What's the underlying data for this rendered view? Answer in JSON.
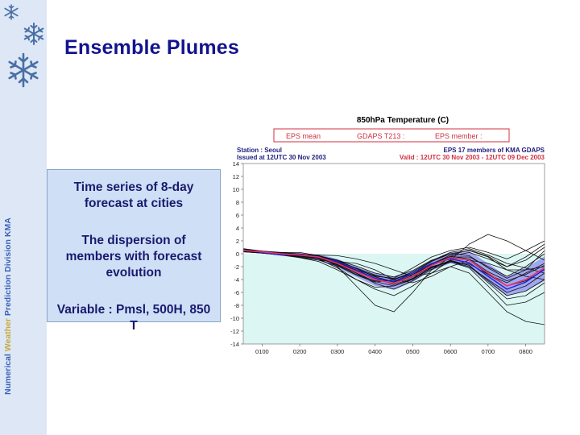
{
  "slide": {
    "title": "Ensemble Plumes",
    "sidebar_label_a": "Numerical ",
    "sidebar_label_b": "Weather",
    "sidebar_label_c": " Prediction Division  KMA",
    "bullets": [
      "Time series of 8-day forecast at cities",
      "The dispersion of members with forecast evolution",
      "Variable : Pmsl, 500H, 850 T"
    ],
    "decor_icons": [
      "snowflake-icon",
      "snowflake-icon",
      "snowflake-icon"
    ]
  },
  "chart_data": {
    "type": "line",
    "title": "850hPa Temperature (C)",
    "legend": [
      "EPS mean",
      "GDAPS T213 :",
      "EPS member :"
    ],
    "station_label": "Station : Seoul",
    "issued_label": "Issued at 12UTC 30 Nov 2003",
    "members_label": "EPS 17 members of KMA GDAPS",
    "valid_label": "Valid : 12UTC 30 Nov 2003 - 12UTC 09 Dec 2003",
    "x_ticks": [
      "0100",
      "0200",
      "0300",
      "0400",
      "0500",
      "0600",
      "0700",
      "0800"
    ],
    "y_ticks": [
      14,
      12,
      10,
      8,
      6,
      4,
      2,
      0,
      -2,
      -4,
      -6,
      -8,
      -10,
      -12,
      -14
    ],
    "ylim": [
      -14,
      14
    ],
    "xlim": [
      0,
      8
    ],
    "colors": {
      "eps_mean": "#e8306a",
      "gdaps": "#2222d0",
      "member": "#111111",
      "spread": "#8c8cf0",
      "above_zero_bg": "#ffffff",
      "below_zero_bg": "#dcf7f3",
      "legend_red": "#d03040"
    },
    "x": [
      0,
      0.5,
      1,
      1.5,
      2,
      2.5,
      3,
      3.5,
      4,
      4.5,
      5,
      5.5,
      6,
      6.5,
      7,
      7.5,
      8
    ],
    "series": [
      {
        "name": "EPS mean",
        "values": [
          0.5,
          0.3,
          0.0,
          -0.2,
          -0.5,
          -1.5,
          -2.8,
          -4.0,
          -4.6,
          -3.5,
          -1.8,
          -0.6,
          -1.0,
          -3.0,
          -5.0,
          -4.0,
          -2.2
        ]
      },
      {
        "name": "GDAPS T213 :",
        "values": [
          0.6,
          0.2,
          -0.2,
          -0.1,
          -0.6,
          -1.2,
          -2.5,
          -3.8,
          -4.3,
          -3.0,
          -1.5,
          -0.8,
          -1.4,
          -3.5,
          -5.5,
          -4.4,
          -2.4
        ]
      },
      {
        "name": "EPS member :",
        "values": [
          0.8,
          0.4,
          0.0,
          -0.6,
          -1.2,
          -2.5,
          -4.0,
          -5.5,
          -6.5,
          -5.0,
          -3.0,
          -2.0,
          -3.0,
          -6.0,
          -9.0,
          -10.5,
          -11.0
        ]
      },
      {
        "name": "EPS member :",
        "values": [
          0.3,
          0.1,
          -0.1,
          -0.1,
          -0.3,
          -1.0,
          -2.3,
          -3.5,
          -3.8,
          -2.2,
          -0.5,
          0.5,
          1.0,
          0.2,
          -0.8,
          0.5,
          2.0
        ]
      },
      {
        "name": "EPS member :",
        "values": [
          0.6,
          0.2,
          0.2,
          0.2,
          -0.3,
          -2.0,
          -5.0,
          -8.0,
          -9.0,
          -6.0,
          -2.5,
          -0.5,
          -0.5,
          -2.0,
          -3.5,
          -2.0,
          0.0
        ]
      },
      {
        "name": "EPS member :",
        "values": [
          0.4,
          0.1,
          -0.2,
          -0.6,
          -1.0,
          -1.2,
          -1.5,
          -2.5,
          -4.0,
          -4.5,
          -3.5,
          -2.0,
          -1.0,
          -1.5,
          -2.5,
          -2.5,
          -2.0
        ]
      },
      {
        "name": "EPS member :",
        "values": [
          0.5,
          0.2,
          -0.1,
          -0.3,
          -0.6,
          -1.8,
          -3.2,
          -4.2,
          -4.2,
          -3.2,
          -1.8,
          -0.7,
          -1.0,
          -3.2,
          -5.0,
          -4.2,
          -2.5
        ]
      },
      {
        "name": "EPS member :",
        "values": [
          0.7,
          0.4,
          0.1,
          0.0,
          -0.5,
          -1.4,
          -2.6,
          -3.8,
          -4.8,
          -3.8,
          -2.2,
          -1.0,
          -1.8,
          -4.5,
          -7.0,
          -6.5,
          -4.5
        ]
      },
      {
        "name": "EPS member :",
        "values": [
          0.4,
          0.2,
          0.0,
          -0.2,
          -0.2,
          -0.3,
          -0.8,
          -1.5,
          -2.5,
          -3.5,
          -3.0,
          -1.0,
          1.5,
          3.0,
          2.0,
          0.5,
          -1.0
        ]
      },
      {
        "name": "EPS member :",
        "values": [
          0.5,
          0.3,
          0.1,
          -0.1,
          -0.4,
          -1.2,
          -2.2,
          -3.3,
          -4.0,
          -3.0,
          -1.2,
          0.0,
          0.5,
          -0.5,
          -2.5,
          -3.5,
          -4.0
        ]
      },
      {
        "name": "EPS member :",
        "values": [
          0.6,
          0.3,
          -0.1,
          -0.4,
          -0.8,
          -2.2,
          -4.0,
          -5.2,
          -5.0,
          -4.0,
          -2.2,
          -1.2,
          -2.2,
          -5.0,
          -8.0,
          -7.5,
          -6.0
        ]
      },
      {
        "name": "EPS member :",
        "values": [
          0.5,
          0.2,
          0.0,
          -0.1,
          -0.3,
          -1.3,
          -2.6,
          -3.8,
          -4.4,
          -3.4,
          -1.7,
          -0.4,
          0.2,
          -0.8,
          -2.0,
          -1.0,
          1.0
        ]
      },
      {
        "name": "EPS member :",
        "values": [
          0.4,
          0.1,
          -0.1,
          -0.3,
          -0.7,
          -1.6,
          -3.0,
          -4.6,
          -5.5,
          -4.2,
          -2.4,
          -1.3,
          -1.6,
          -3.2,
          -4.5,
          -3.0,
          -1.5
        ]
      },
      {
        "name": "EPS member :",
        "values": [
          0.6,
          0.3,
          0.0,
          -0.2,
          -0.4,
          -1.0,
          -1.9,
          -3.0,
          -3.6,
          -2.6,
          -1.0,
          0.0,
          -0.3,
          -2.2,
          -3.8,
          -2.5,
          0.5
        ]
      },
      {
        "name": "EPS member :",
        "values": [
          0.5,
          0.3,
          0.1,
          -0.2,
          -0.6,
          -1.5,
          -2.8,
          -4.0,
          -4.6,
          -3.6,
          -2.0,
          -1.2,
          -2.0,
          -4.0,
          -6.0,
          -5.0,
          -3.0
        ]
      },
      {
        "name": "EPS member :",
        "values": [
          0.7,
          0.3,
          -0.1,
          -0.5,
          -1.0,
          -1.9,
          -3.3,
          -4.4,
          -4.0,
          -2.8,
          -1.1,
          0.2,
          0.8,
          -0.2,
          -1.5,
          -2.2,
          -3.0
        ]
      },
      {
        "name": "EPS member :",
        "values": [
          0.3,
          0.1,
          -0.2,
          -0.4,
          -0.8,
          -1.6,
          -2.5,
          -3.4,
          -3.9,
          -3.0,
          -1.5,
          -0.4,
          -0.8,
          -2.8,
          -4.2,
          -3.2,
          -1.8
        ]
      },
      {
        "name": "EPS member :",
        "values": [
          0.5,
          0.2,
          0.1,
          0.0,
          -0.4,
          -1.1,
          -2.3,
          -3.6,
          -4.3,
          -3.2,
          -1.6,
          -0.2,
          0.6,
          -0.4,
          -2.0,
          -0.5,
          1.5
        ]
      },
      {
        "name": "EPS member :",
        "values": [
          0.6,
          0.4,
          0.2,
          -0.1,
          -0.6,
          -1.7,
          -3.0,
          -4.3,
          -5.0,
          -3.9,
          -2.1,
          -1.1,
          -1.8,
          -4.2,
          -6.5,
          -5.8,
          -4.0
        ]
      }
    ],
    "spread": {
      "lower": [
        0.3,
        0.1,
        -0.3,
        -0.6,
        -1.0,
        -2.2,
        -3.6,
        -5.0,
        -5.6,
        -4.4,
        -2.6,
        -1.5,
        -2.2,
        -4.5,
        -6.5,
        -5.8,
        -4.2
      ],
      "upper": [
        0.8,
        0.5,
        0.3,
        0.1,
        -0.1,
        -0.8,
        -2.0,
        -3.0,
        -3.6,
        -2.6,
        -1.0,
        0.3,
        0.4,
        -1.5,
        -3.5,
        -2.2,
        -0.4
      ]
    },
    "grid": false
  }
}
